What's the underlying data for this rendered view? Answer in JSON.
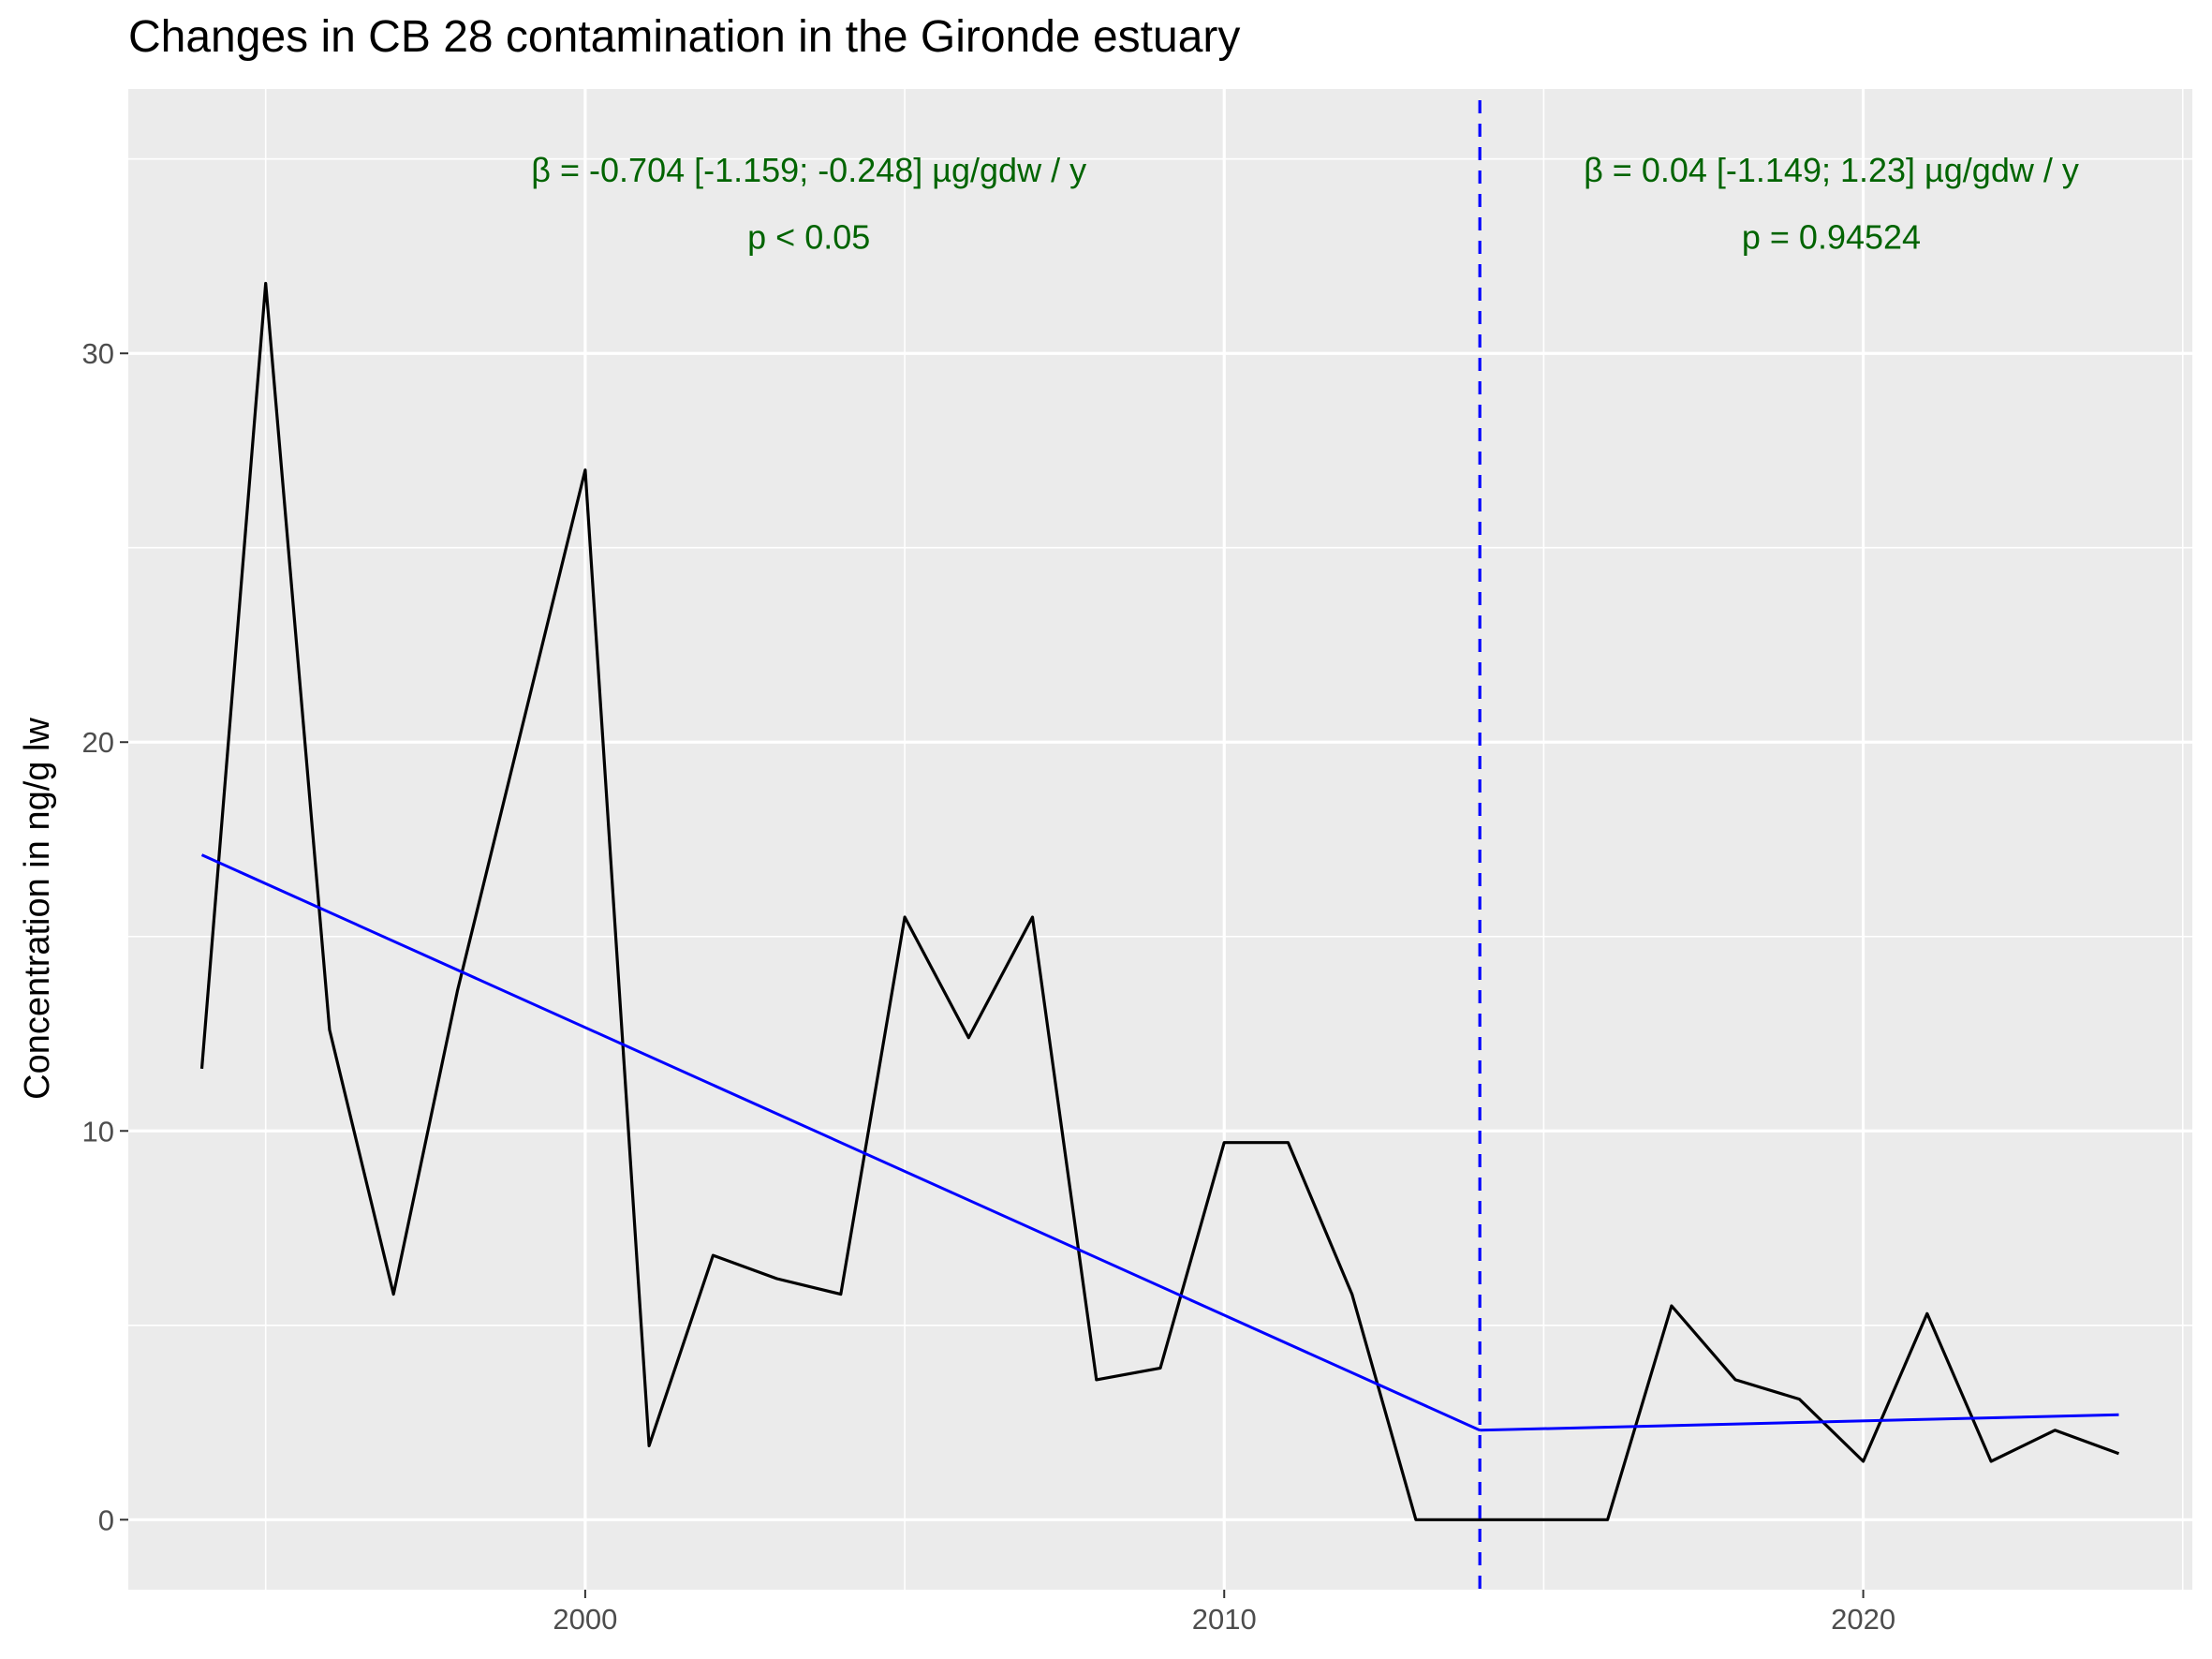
{
  "chart_data": {
    "type": "line",
    "title": "Changes in CB 28 contamination in the Gironde estuary",
    "xlabel": "",
    "ylabel": "Concentration in ng/g lw",
    "xlim": [
      1992.85,
      2025.15
    ],
    "ylim": [
      -1.8,
      36.8
    ],
    "x_ticks": [
      2000,
      2010,
      2020
    ],
    "y_ticks": [
      0,
      10,
      20,
      30
    ],
    "grid": true,
    "legend": "none",
    "colors": {
      "panel_background": "#ebebeb",
      "grid": "#ffffff",
      "observed_line": "#000000",
      "trend_line": "#0000ff",
      "breakpoint_line": "#0000ff",
      "annotation_text": "#006400",
      "tick_text": "#4d4d4d"
    },
    "series": [
      {
        "role": "observed",
        "x": [
          1994,
          1995,
          1996,
          1997,
          1998,
          1999,
          2000,
          2001,
          2002,
          2003,
          2004,
          2005,
          2006,
          2007,
          2008,
          2009,
          2010,
          2011,
          2012,
          2013,
          2014,
          2015,
          2016,
          2017,
          2018,
          2019,
          2020,
          2021,
          2022,
          2023,
          2024
        ],
        "y": [
          11.6,
          31.8,
          12.6,
          5.8,
          13.6,
          20.3,
          27.0,
          1.9,
          6.8,
          6.2,
          5.8,
          15.5,
          12.4,
          15.5,
          3.6,
          3.9,
          9.7,
          9.7,
          5.8,
          0.0,
          0.0,
          0.0,
          0.0,
          5.5,
          3.6,
          3.1,
          1.5,
          5.3,
          1.5,
          2.3,
          1.7
        ]
      },
      {
        "role": "trend-before-breakpoint",
        "x": [
          1994,
          2014
        ],
        "y": [
          17.1,
          2.3
        ]
      },
      {
        "role": "trend-after-breakpoint",
        "x": [
          2014,
          2024
        ],
        "y": [
          2.3,
          2.7
        ]
      }
    ],
    "breakpoint_x": 2014,
    "annotations": [
      {
        "line1": "β = -0.704 [-1.159; -0.248] µg/gdw / y",
        "line2": "p < 0.05",
        "x": 2003.5,
        "y1": 34.7,
        "y2": 33.2
      },
      {
        "line1": "β = 0.04 [-1.149; 1.23] µg/gdw / y",
        "line2": "p = 0.94524",
        "x": 2019.5,
        "y1": 34.7,
        "y2": 33.2
      }
    ]
  }
}
